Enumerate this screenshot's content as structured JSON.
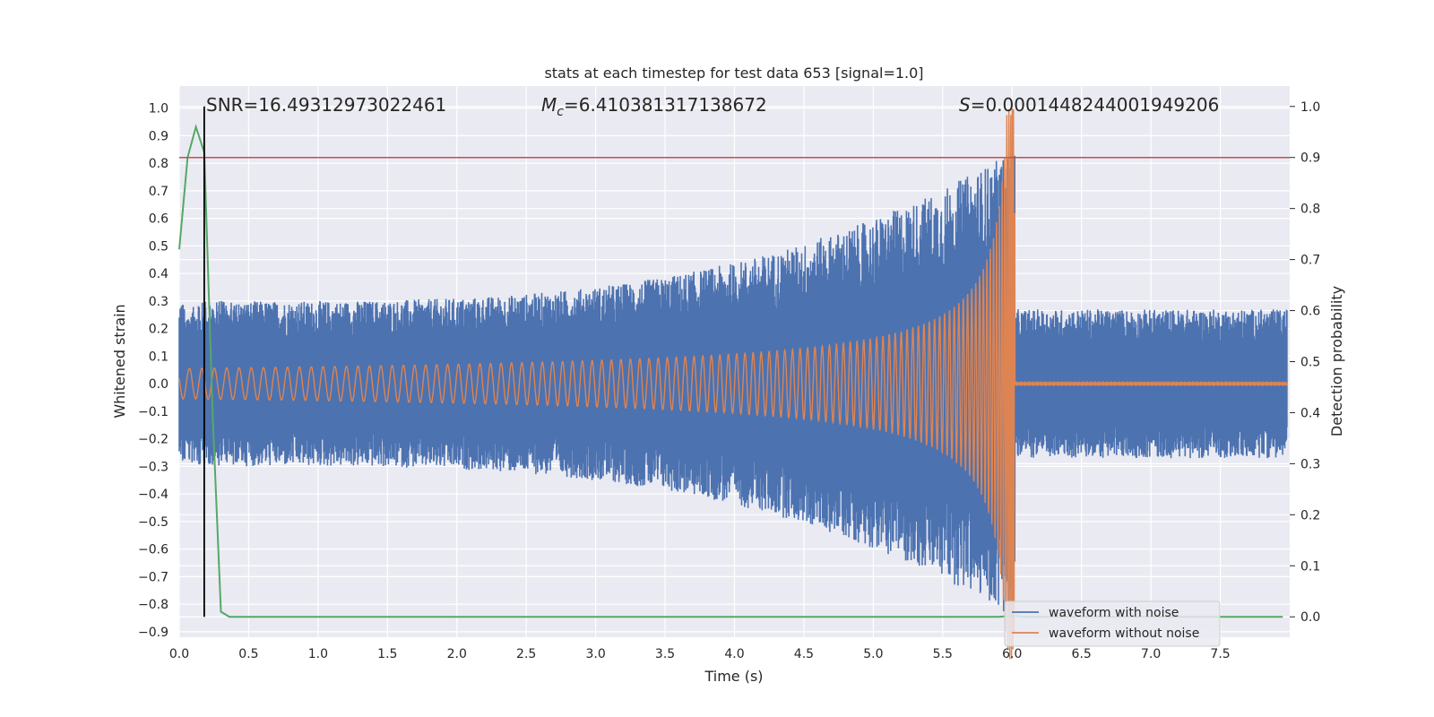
{
  "chart_data": {
    "type": "line",
    "title": "stats at each timestep for test data 653 [signal=1.0]",
    "xlabel": "Time (s)",
    "ylabel": "Whitened strain",
    "ylabel_right": "Detection probability",
    "xlim": [
      0.0,
      8.0
    ],
    "ylim": [
      -0.92,
      1.08
    ],
    "ylim_right": [
      -0.04,
      1.04
    ],
    "x_ticks": [
      0.0,
      0.5,
      1.0,
      1.5,
      2.0,
      2.5,
      3.0,
      3.5,
      4.0,
      4.5,
      5.0,
      5.5,
      6.0,
      6.5,
      7.0,
      7.5
    ],
    "x_tick_labels": [
      "0.0",
      "0.5",
      "1.0",
      "1.5",
      "2.0",
      "2.5",
      "3.0",
      "3.5",
      "4.0",
      "4.5",
      "5.0",
      "5.5",
      "6.0",
      "6.5",
      "7.0",
      "7.5"
    ],
    "y_ticks": [
      1.0,
      0.9,
      0.8,
      0.7,
      0.6,
      0.5,
      0.4,
      0.3,
      0.2,
      0.1,
      0.0,
      -0.1,
      -0.2,
      -0.3,
      -0.4,
      -0.5,
      -0.6,
      -0.7,
      -0.8,
      -0.9
    ],
    "y_tick_labels": [
      "1.0",
      "0.9",
      "0.8",
      "0.7",
      "0.6",
      "0.5",
      "0.4",
      "0.3",
      "0.2",
      "0.1",
      "0.0",
      "−0.1",
      "−0.2",
      "−0.3",
      "−0.4",
      "−0.5",
      "−0.6",
      "−0.7",
      "−0.8",
      "−0.9"
    ],
    "y2_ticks": [
      1.0,
      0.9,
      0.8,
      0.7,
      0.6,
      0.5,
      0.4,
      0.3,
      0.2,
      0.1,
      0.0
    ],
    "y2_tick_labels": [
      "1.0",
      "0.9",
      "0.8",
      "0.7",
      "0.6",
      "0.5",
      "0.4",
      "0.3",
      "0.2",
      "0.1",
      "0.0"
    ],
    "grid": true,
    "legend_position": "bottom-center",
    "annotations": {
      "snr": "SNR=16.49312973022461",
      "mc_symbol": "M",
      "mc_sub": "c",
      "mc_value": "=6.410381317138672",
      "s_symbol": "S",
      "s_value": "=0.0001448244001949206"
    },
    "series": [
      {
        "name": "waveform with noise",
        "color": "#4c72b0",
        "description_params": {
          "noise_amp_base": 0.3,
          "noise_amp_peak": 0.85,
          "merger_time": 6.02,
          "post_merger_noise_amp": 0.27
        }
      },
      {
        "name": "waveform without noise",
        "color": "#dd8452",
        "description_params": {
          "start_amp": 0.055,
          "peak_amp": 1.0,
          "merger_time": 6.02
        }
      },
      {
        "name": "detection probability",
        "color": "#55a868",
        "axis": "right",
        "x": [
          0.0,
          0.06,
          0.12,
          0.18,
          0.24,
          0.3,
          0.36,
          0.5,
          1.0,
          2.0,
          3.0,
          4.0,
          5.0,
          5.9,
          6.0,
          6.1,
          7.0,
          7.95
        ],
        "values": [
          0.72,
          0.9,
          0.96,
          0.91,
          0.4,
          0.01,
          0.0,
          0.0,
          0.0,
          0.0,
          0.0,
          0.0,
          0.0,
          0.0,
          0.002,
          0.0,
          0.0,
          0.0
        ]
      }
    ],
    "threshold_line": {
      "value_right": 0.9,
      "color": "#c44e52"
    },
    "vertical_marker": {
      "x": 0.18,
      "color": "#000000",
      "y_from_right": 0.0,
      "y_to_right": 1.0
    }
  }
}
